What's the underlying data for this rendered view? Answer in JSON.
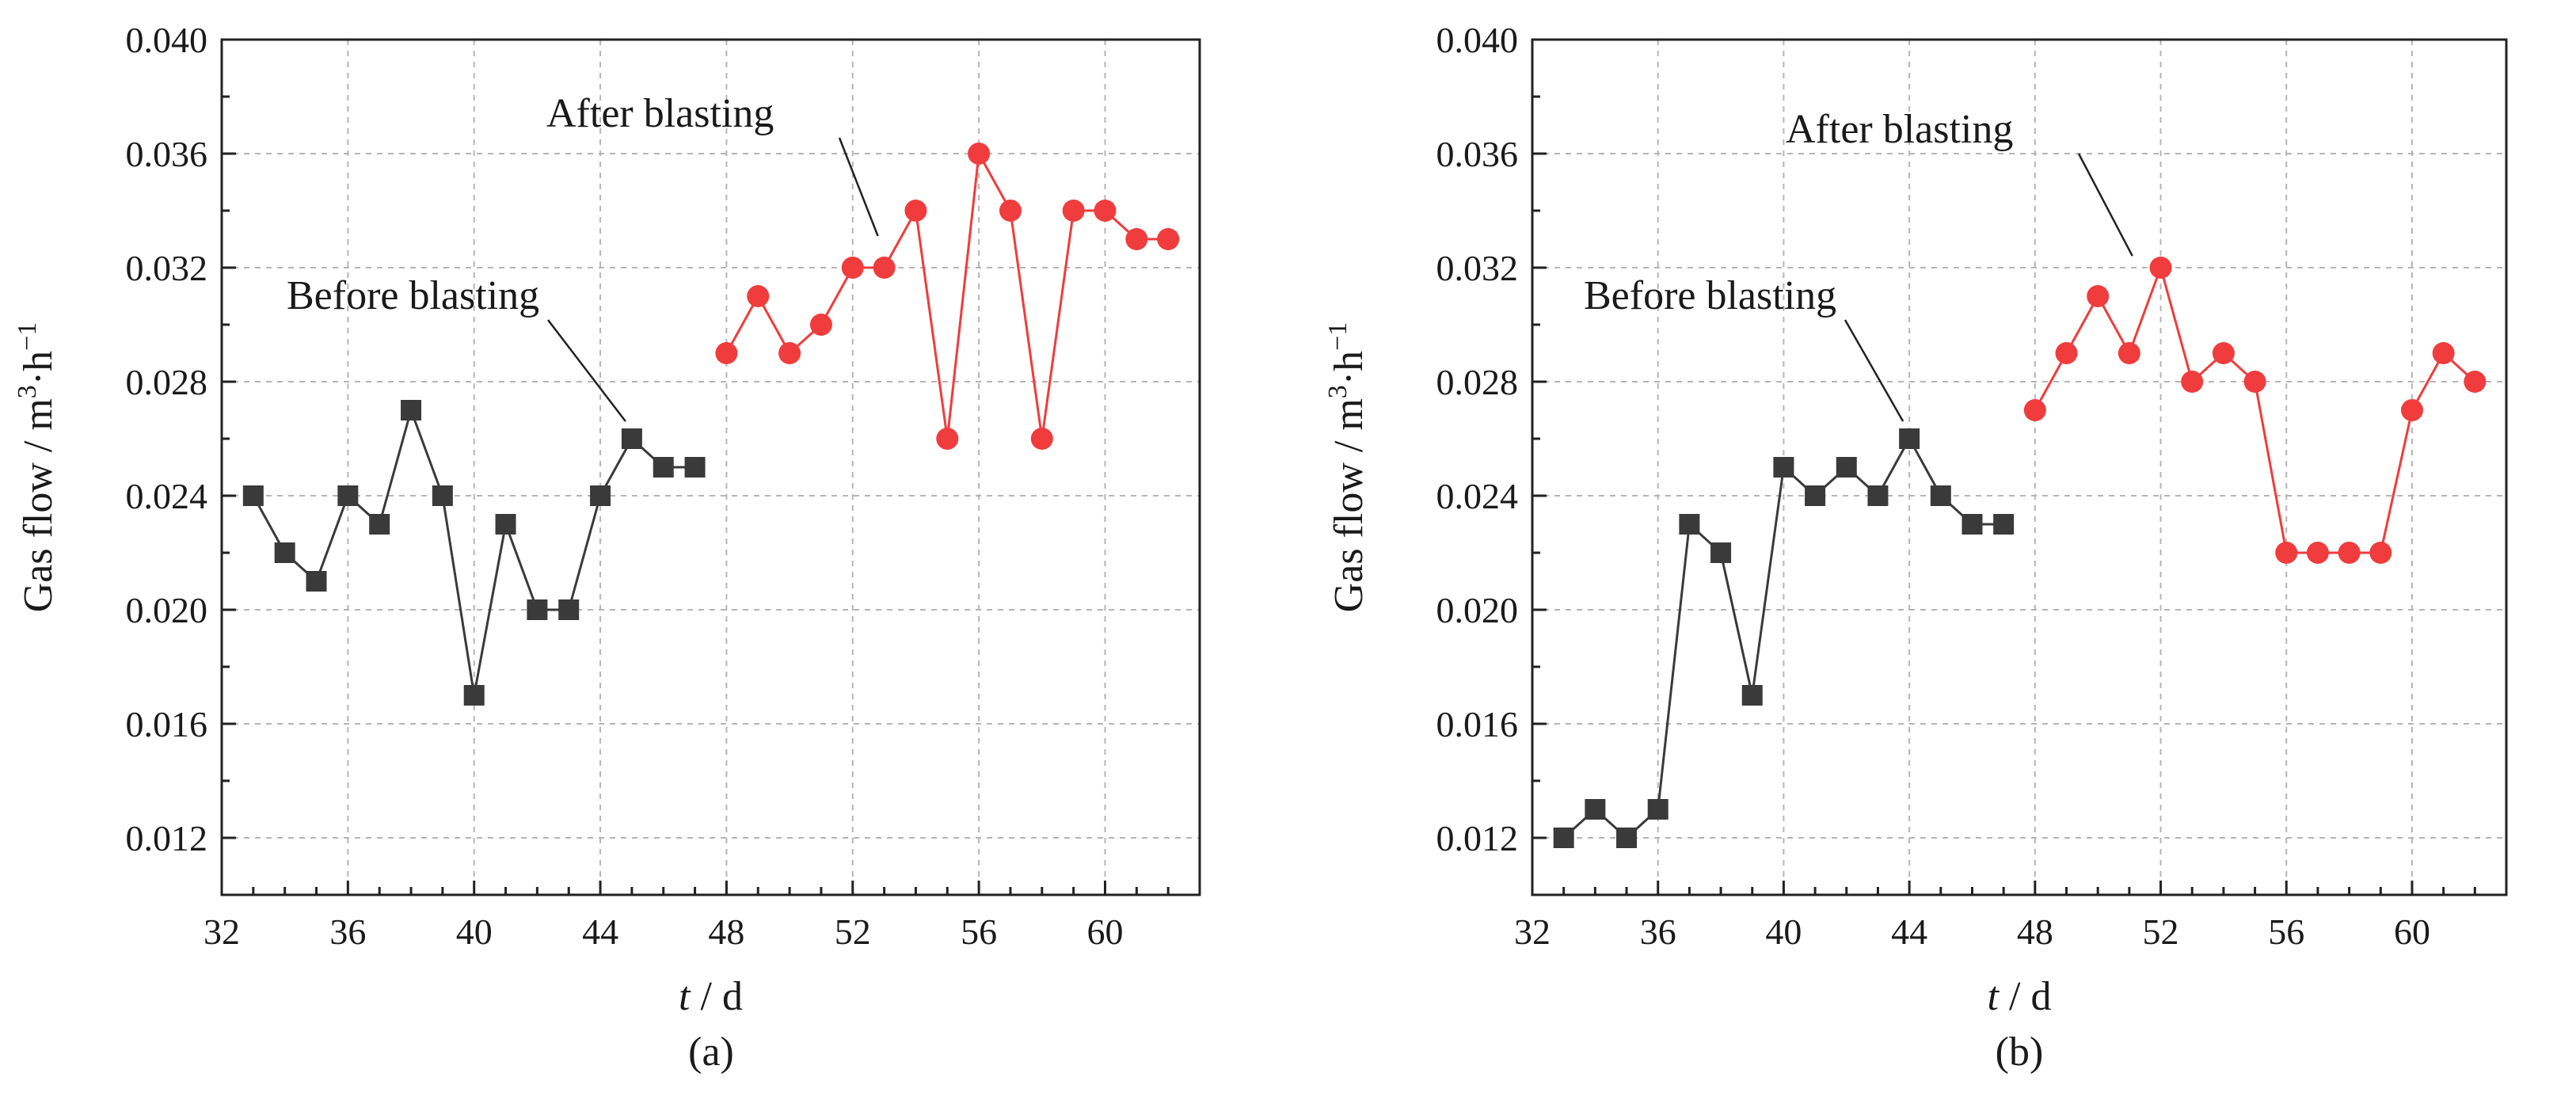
{
  "chart_data": [
    {
      "type": "line",
      "caption": "(a)",
      "xlabel_var": "t",
      "xlabel_unit": " / d",
      "ylabel_prefix": "Gas flow / m",
      "ylabel_exp1": "3",
      "ylabel_mid": "·h",
      "ylabel_exp2": "−1",
      "xlim": [
        32,
        63
      ],
      "ylim": [
        0.01,
        0.04
      ],
      "xticks": [
        32,
        36,
        40,
        44,
        48,
        52,
        56,
        60
      ],
      "xtick_labels": [
        "32",
        "36",
        "40",
        "44",
        "48",
        "52",
        "56",
        "60"
      ],
      "yticks": [
        0.012,
        0.016,
        0.02,
        0.024,
        0.028,
        0.032,
        0.036,
        0.04
      ],
      "ytick_labels": [
        "0.012",
        "0.016",
        "0.020",
        "0.024",
        "0.028",
        "0.032",
        "0.036",
        "0.040"
      ],
      "grid": true,
      "series": [
        {
          "name": "Before blasting",
          "color": "#3a3a3a",
          "marker": "square",
          "x": [
            33,
            34,
            35,
            36,
            37,
            38,
            39,
            40,
            41,
            42,
            43,
            44,
            45,
            46,
            47
          ],
          "y": [
            0.024,
            0.022,
            0.021,
            0.024,
            0.023,
            0.027,
            0.024,
            0.017,
            0.023,
            0.02,
            0.02,
            0.024,
            0.026,
            0.025,
            0.025
          ]
        },
        {
          "name": "After blasting",
          "color": "#f03c3c",
          "marker": "circle",
          "x": [
            48,
            49,
            50,
            51,
            52,
            53,
            54,
            55,
            56,
            57,
            58,
            59,
            60,
            61,
            62
          ],
          "y": [
            0.029,
            0.031,
            0.029,
            0.03,
            0.032,
            0.032,
            0.034,
            0.026,
            0.036,
            0.034,
            0.026,
            0.034,
            0.034,
            0.033,
            0.033
          ]
        }
      ],
      "annotations": [
        {
          "text": "Before blasting",
          "target_x": 45,
          "target_y": 0.026
        },
        {
          "text": "After blasting",
          "target_x": 53,
          "target_y": 0.0325
        }
      ]
    },
    {
      "type": "line",
      "caption": "(b)",
      "xlabel_var": "t",
      "xlabel_unit": " / d",
      "ylabel_prefix": "Gas flow / m",
      "ylabel_exp1": "3",
      "ylabel_mid": "·h",
      "ylabel_exp2": "−1",
      "xlim": [
        32,
        63
      ],
      "ylim": [
        0.01,
        0.04
      ],
      "xticks": [
        32,
        36,
        40,
        44,
        48,
        52,
        56,
        60
      ],
      "xtick_labels": [
        "32",
        "36",
        "40",
        "44",
        "48",
        "52",
        "56",
        "60"
      ],
      "yticks": [
        0.012,
        0.016,
        0.02,
        0.024,
        0.028,
        0.032,
        0.036,
        0.04
      ],
      "ytick_labels": [
        "0.012",
        "0.016",
        "0.020",
        "0.024",
        "0.028",
        "0.032",
        "0.036",
        "0.040"
      ],
      "grid": true,
      "series": [
        {
          "name": "Before blasting",
          "color": "#3a3a3a",
          "marker": "square",
          "x": [
            33,
            34,
            35,
            36,
            37,
            38,
            39,
            40,
            41,
            42,
            43,
            44,
            45,
            46,
            47
          ],
          "y": [
            0.012,
            0.013,
            0.012,
            0.013,
            0.023,
            0.022,
            0.017,
            0.025,
            0.024,
            0.025,
            0.024,
            0.026,
            0.024,
            0.023,
            0.023
          ]
        },
        {
          "name": "After blasting",
          "color": "#f03c3c",
          "marker": "circle",
          "x": [
            48,
            49,
            50,
            51,
            52,
            53,
            54,
            55,
            56,
            57,
            58,
            59,
            60,
            61,
            62
          ],
          "y": [
            0.027,
            0.029,
            0.031,
            0.029,
            0.032,
            0.028,
            0.029,
            0.028,
            0.022,
            0.022,
            0.022,
            0.022,
            0.027,
            0.029,
            0.028
          ]
        }
      ],
      "annotations": [
        {
          "text": "Before blasting",
          "target_x": 44,
          "target_y": 0.026
        },
        {
          "text": "After blasting",
          "target_x": 51.3,
          "target_y": 0.0318
        }
      ]
    }
  ]
}
